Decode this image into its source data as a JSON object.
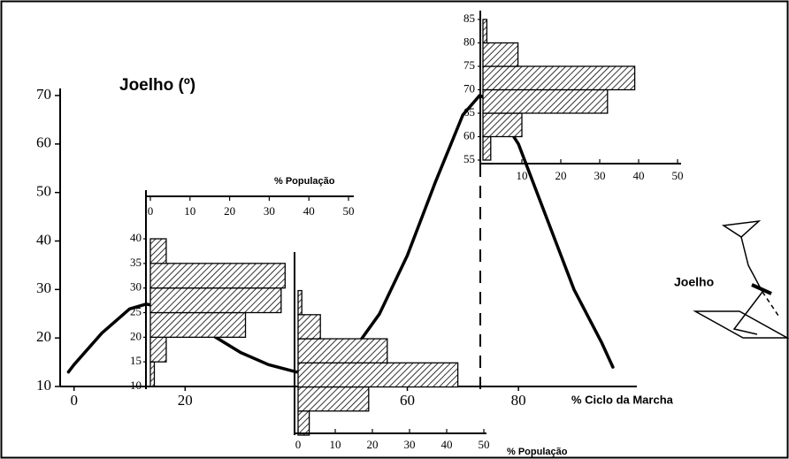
{
  "chart_data": [
    {
      "type": "line",
      "title": "Joelho (º)",
      "x_label": "% Ciclo da Marcha",
      "x": [
        -1,
        0,
        5,
        10,
        13,
        15,
        20,
        25,
        30,
        35,
        40,
        45,
        50,
        55,
        60,
        65,
        70,
        73,
        75,
        80,
        85,
        90,
        95,
        97
      ],
      "values": [
        13,
        14.5,
        21,
        26,
        27,
        26.5,
        24,
        20.5,
        17,
        14.5,
        13,
        13.5,
        17,
        25,
        37,
        52,
        66,
        70,
        69,
        60,
        45,
        30,
        19,
        14
      ],
      "color": "#000000",
      "xlim": [
        -2.5,
        101
      ],
      "xticks": [
        0,
        20,
        60,
        80
      ],
      "ylim": [
        10,
        70
      ],
      "yticks": [
        10,
        20,
        30,
        40,
        50,
        60,
        70
      ]
    },
    {
      "type": "histogram",
      "orientation": "horizontal",
      "x_label": "% População",
      "bins": [
        10,
        15,
        20,
        25,
        30,
        35,
        40
      ],
      "counts": [
        1,
        4,
        24,
        33,
        34,
        4
      ],
      "xlim": [
        0,
        50
      ],
      "xticks": [
        0,
        10,
        20,
        30,
        40,
        50
      ],
      "ylim": [
        10,
        40
      ],
      "yticks": [
        10,
        15,
        20,
        25,
        30,
        35,
        40
      ]
    },
    {
      "type": "histogram",
      "orientation": "horizontal",
      "x_label": "% População",
      "bins": [
        0,
        5,
        10,
        15,
        20,
        25,
        30
      ],
      "counts": [
        3,
        19,
        43,
        24,
        6,
        1
      ],
      "xlim": [
        0,
        50
      ],
      "xticks": [
        0,
        10,
        20,
        30,
        40,
        50
      ],
      "ylim": [
        0,
        38
      ]
    },
    {
      "type": "histogram",
      "orientation": "horizontal",
      "bins": [
        55,
        60,
        65,
        70,
        75,
        80,
        85
      ],
      "counts": [
        2,
        10,
        32,
        39,
        9,
        1
      ],
      "xlim": [
        0,
        50
      ],
      "xticks": [
        10,
        20,
        30,
        40,
        50
      ],
      "ylim": [
        55,
        85
      ],
      "yticks": [
        55,
        60,
        65,
        70,
        75,
        80,
        85
      ]
    }
  ],
  "figure_label": "Joelho"
}
